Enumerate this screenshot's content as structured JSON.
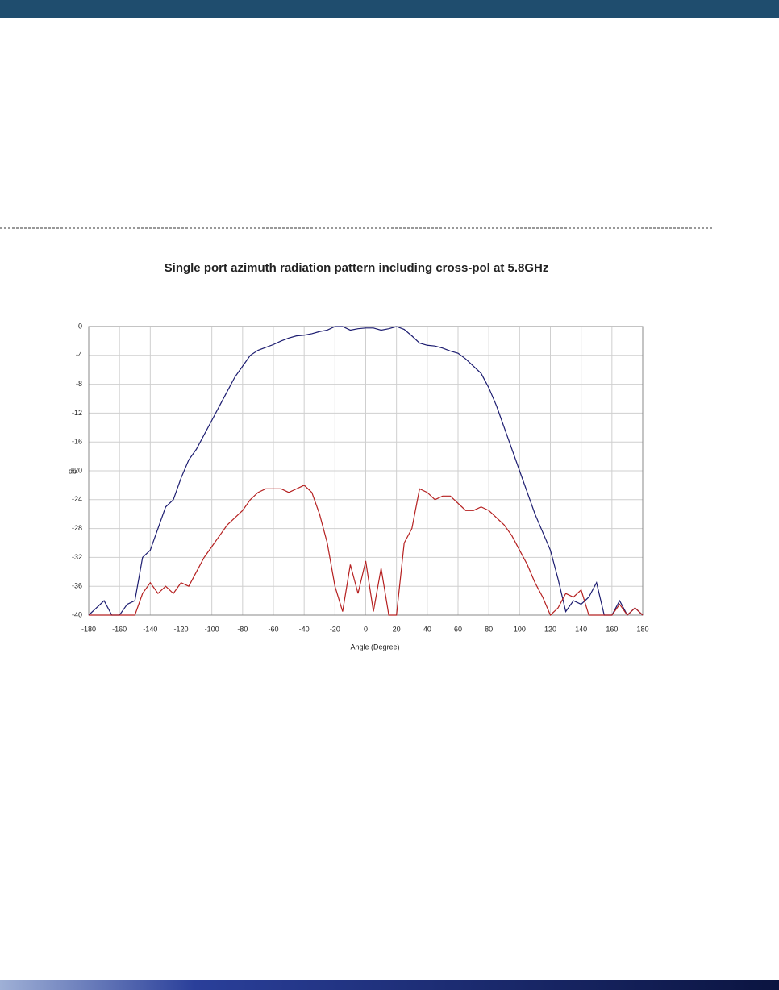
{
  "chart_data": {
    "type": "line",
    "title": "Single port azimuth radiation pattern including cross-pol at 5.8GHz",
    "x_label": "Angle (Degree)",
    "y_label": "db",
    "x": [
      -180,
      -175,
      -170,
      -165,
      -160,
      -155,
      -150,
      -145,
      -140,
      -135,
      -130,
      -125,
      -120,
      -115,
      -110,
      -105,
      -100,
      -95,
      -90,
      -85,
      -80,
      -75,
      -70,
      -65,
      -60,
      -55,
      -50,
      -45,
      -40,
      -35,
      -30,
      -25,
      -20,
      -15,
      -10,
      -5,
      0,
      5,
      10,
      15,
      20,
      25,
      30,
      35,
      40,
      45,
      50,
      55,
      60,
      65,
      70,
      75,
      80,
      85,
      90,
      95,
      100,
      105,
      110,
      115,
      120,
      125,
      130,
      135,
      140,
      145,
      150,
      155,
      160,
      165,
      170,
      175,
      180
    ],
    "series": [
      {
        "color": "#1c1c70",
        "values": [
          -40,
          -39,
          -38,
          -40,
          -40,
          -38.5,
          -38,
          -32,
          -31,
          -28,
          -25,
          -24,
          -21,
          -18.5,
          -17,
          -15,
          -13,
          -11,
          -9,
          -7,
          -5.5,
          -4,
          -3.3,
          -2.9,
          -2.5,
          -2,
          -1.6,
          -1.3,
          -1.2,
          -1,
          -0.7,
          -0.5,
          0,
          0,
          -0.5,
          -0.3,
          -0.2,
          -0.2,
          -0.5,
          -0.3,
          0,
          -0.4,
          -1.3,
          -2.3,
          -2.6,
          -2.7,
          -3,
          -3.4,
          -3.7,
          -4.5,
          -5.5,
          -6.5,
          -8.5,
          -11,
          -14,
          -17,
          -20,
          -23,
          -26,
          -28.5,
          -31,
          -35,
          -39.5,
          -38,
          -38.5,
          -37.5,
          -35.5,
          -40,
          -40,
          -38,
          -40,
          -39,
          -40
        ]
      },
      {
        "color": "#b52020",
        "values": [
          -40,
          -40,
          -40,
          -40,
          -40,
          -40,
          -40,
          -37,
          -35.5,
          -37,
          -36,
          -37,
          -35.5,
          -36,
          -34,
          -32,
          -30.5,
          -29,
          -27.5,
          -26.5,
          -25.5,
          -24,
          -23,
          -22.5,
          -22.5,
          -22.5,
          -23,
          -22.5,
          -22,
          -23,
          -26,
          -30,
          -36,
          -39.5,
          -33,
          -37,
          -32.5,
          -39.5,
          -33.5,
          -40,
          -40,
          -30,
          -28,
          -22.5,
          -23,
          -24,
          -23.5,
          -23.5,
          -24.5,
          -25.5,
          -25.5,
          -25,
          -25.5,
          -26.5,
          -27.5,
          -29,
          -31,
          -33,
          -35.5,
          -37.5,
          -40,
          -39,
          -37,
          -37.5,
          -36.5,
          -40,
          -40,
          -40,
          -40,
          -38.5,
          -40,
          -39,
          -40
        ]
      }
    ],
    "xlim": [
      -180,
      180
    ],
    "xticks": [
      -180,
      -160,
      -140,
      -120,
      -100,
      -80,
      -60,
      -40,
      -20,
      0,
      20,
      40,
      60,
      80,
      100,
      120,
      140,
      160,
      180
    ],
    "ylim": [
      -40,
      0
    ],
    "yticks": [
      0,
      -4,
      -8,
      -12,
      -16,
      -20,
      -24,
      -28,
      -32,
      -36,
      -40
    ],
    "grid": true
  }
}
